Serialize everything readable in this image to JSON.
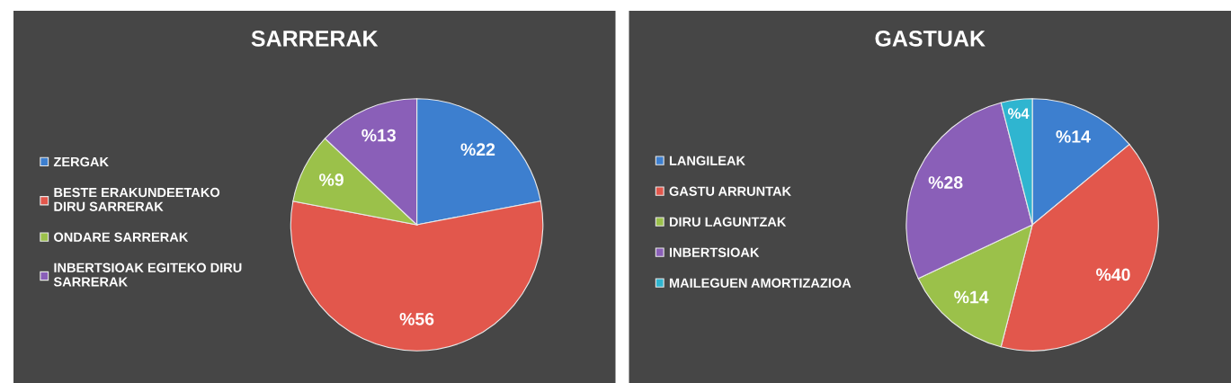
{
  "chart_data": [
    {
      "type": "pie",
      "title": "SARRERAK",
      "categories": [
        "ZERGAK",
        "BESTE ERAKUNDEETAKO DIRU SARRERAK",
        "ONDARE SARRERAK",
        "INBERTSIOAK EGITEKO DIRU SARRERAK"
      ],
      "values": [
        22,
        56,
        9,
        13
      ],
      "value_labels": [
        "%22",
        "%56",
        "%9",
        "%13"
      ],
      "colors": [
        "#3d7fcf",
        "#e2574c",
        "#9bc14a",
        "#8a5fb8"
      ],
      "legend": "left"
    },
    {
      "type": "pie",
      "title": "GASTUAK",
      "categories": [
        "LANGILEAK",
        "GASTU ARRUNTAK",
        "DIRU LAGUNTZAK",
        "INBERTSIOAK",
        "MAILEGUEN AMORTIZAZIOA"
      ],
      "values": [
        14,
        40,
        14,
        28,
        4
      ],
      "value_labels": [
        "%14",
        "%40",
        "%14",
        "%28",
        "%4"
      ],
      "colors": [
        "#3d7fcf",
        "#e2574c",
        "#9bc14a",
        "#8a5fb8",
        "#2fb5d0"
      ],
      "legend": "left"
    }
  ]
}
